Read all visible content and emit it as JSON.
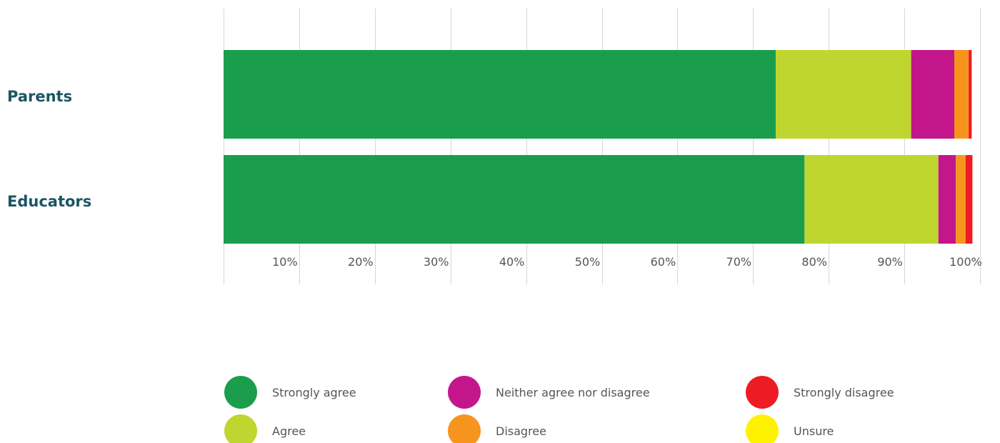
{
  "chart_data": {
    "type": "bar",
    "orientation": "horizontal",
    "stacked": true,
    "categories": [
      "Parents",
      "Educators"
    ],
    "series": [
      {
        "name": "Strongly agree",
        "color": "#1a9e4e",
        "values": [
          73.0,
          76.8
        ]
      },
      {
        "name": "Agree",
        "color": "#bed62f",
        "values": [
          17.9,
          17.7
        ]
      },
      {
        "name": "Neither agree nor disagree",
        "color": "#c4168b",
        "values": [
          5.7,
          2.3
        ]
      },
      {
        "name": "Disagree",
        "color": "#f7941e",
        "values": [
          1.9,
          1.3
        ]
      },
      {
        "name": "Strongly disagree",
        "color": "#ed1c24",
        "values": [
          0.4,
          0.9
        ]
      },
      {
        "name": "Unsure",
        "color": "#fff200",
        "values": [
          0,
          0
        ]
      }
    ],
    "x_ticks": [
      "10%",
      "20%",
      "30%",
      "40%",
      "50%",
      "60%",
      "70%",
      "80%",
      "90%",
      "100%"
    ],
    "xlim": [
      0,
      100
    ],
    "grid": true,
    "legend_position": "bottom"
  }
}
